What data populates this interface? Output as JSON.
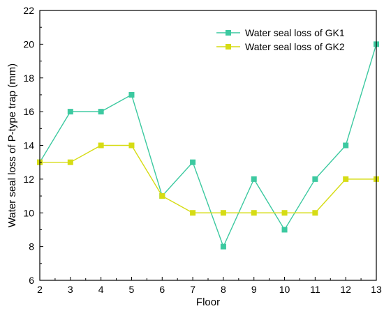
{
  "chart_data": {
    "type": "line",
    "xlabel": "Floor",
    "ylabel": "Water seal loss of P-type trap (mm)",
    "x": [
      2,
      3,
      4,
      5,
      6,
      7,
      8,
      9,
      10,
      11,
      12,
      13
    ],
    "xlim": [
      2,
      13
    ],
    "ylim": [
      6,
      22
    ],
    "xticks": [
      2,
      3,
      4,
      5,
      6,
      7,
      8,
      9,
      10,
      11,
      12,
      13
    ],
    "yticks": [
      6,
      8,
      10,
      12,
      14,
      16,
      18,
      20,
      22
    ],
    "grid": false,
    "legend_position": "top-right",
    "series": [
      {
        "name": "Water seal loss of GK1",
        "color": "#3CC9A0",
        "marker": "square",
        "values": [
          13,
          16,
          16,
          17,
          11,
          13,
          8,
          12,
          9,
          12,
          14,
          20
        ]
      },
      {
        "name": "Water seal loss of GK2",
        "color": "#D6DC14",
        "marker": "square",
        "values": [
          13,
          13,
          14,
          14,
          11,
          10,
          10,
          10,
          10,
          10,
          12,
          12
        ]
      }
    ]
  }
}
